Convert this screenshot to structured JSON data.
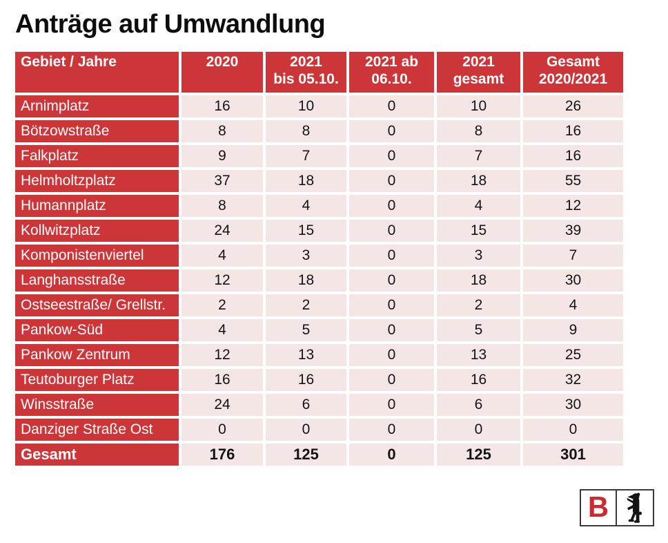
{
  "title": "Anträge auf Umwandlung",
  "table": {
    "header": {
      "col0": "Gebiet / Jahre",
      "col1": "2020",
      "col2": "2021\nbis 05.10.",
      "col3": "2021 ab\n06.10.",
      "col4": "2021\ngesamt",
      "col5": "Gesamt\n2020/2021"
    },
    "rows": [
      {
        "label": "Arnimplatz",
        "values": [
          "16",
          "10",
          "0",
          "10",
          "26"
        ]
      },
      {
        "label": "Bötzowstraße",
        "values": [
          "8",
          "8",
          "0",
          "8",
          "16"
        ]
      },
      {
        "label": "Falkplatz",
        "values": [
          "9",
          "7",
          "0",
          "7",
          "16"
        ]
      },
      {
        "label": "Helmholtzplatz",
        "values": [
          "37",
          "18",
          "0",
          "18",
          "55"
        ]
      },
      {
        "label": "Humannplatz",
        "values": [
          "8",
          "4",
          "0",
          "4",
          "12"
        ]
      },
      {
        "label": "Kollwitzplatz",
        "values": [
          "24",
          "15",
          "0",
          "15",
          "39"
        ]
      },
      {
        "label": "Komponistenviertel",
        "values": [
          "4",
          "3",
          "0",
          "3",
          "7"
        ]
      },
      {
        "label": "Langhansstraße",
        "values": [
          "12",
          "18",
          "0",
          "18",
          "30"
        ]
      },
      {
        "label": "Ostseestraße/ Grellstr.",
        "values": [
          "2",
          "2",
          "0",
          "2",
          "4"
        ]
      },
      {
        "label": "Pankow-Süd",
        "values": [
          "4",
          "5",
          "0",
          "5",
          "9"
        ]
      },
      {
        "label": "Pankow Zentrum",
        "values": [
          "12",
          "13",
          "0",
          "13",
          "25"
        ]
      },
      {
        "label": "Teutoburger Platz",
        "values": [
          "16",
          "16",
          "0",
          "16",
          "32"
        ]
      },
      {
        "label": "Winsstraße",
        "values": [
          "24",
          "6",
          "0",
          "6",
          "30"
        ]
      },
      {
        "label": "Danziger Straße Ost",
        "values": [
          "0",
          "0",
          "0",
          "0",
          "0"
        ]
      }
    ],
    "total": {
      "label": "Gesamt",
      "values": [
        "176",
        "125",
        "0",
        "125",
        "301"
      ]
    }
  },
  "logo": {
    "letter": "B"
  },
  "colors": {
    "red": "#cd3639",
    "pink": "#f4e6e4",
    "ink": "#141414",
    "logo_red": "#c92b30"
  }
}
